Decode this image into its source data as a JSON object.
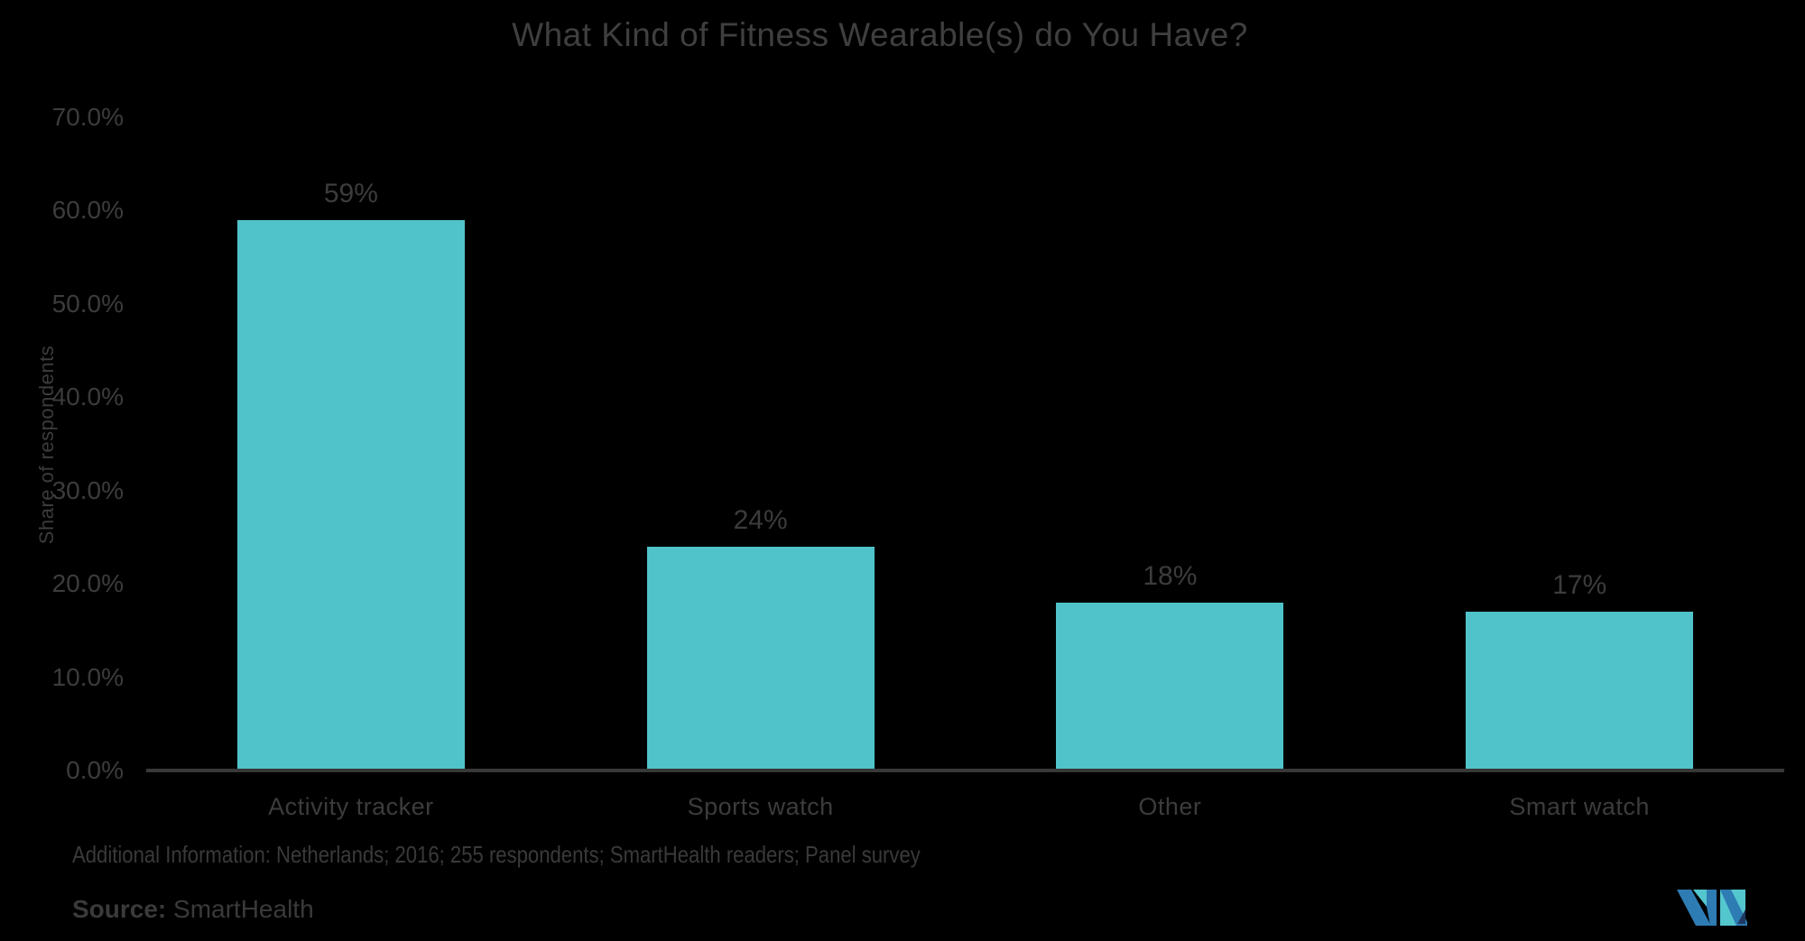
{
  "title": "What Kind of Fitness Wearable(s) do You Have?",
  "chart_data": {
    "type": "bar",
    "title": "What Kind of Fitness Wearable(s) do You Have?",
    "categories": [
      "Activity tracker",
      "Sports watch",
      "Other",
      "Smart watch"
    ],
    "values": [
      59,
      24,
      18,
      17
    ],
    "value_labels": [
      "59%",
      "24%",
      "18%",
      "17%"
    ],
    "xlabel": "",
    "ylabel": "Share of respondents",
    "ylim": [
      0,
      70
    ],
    "ytick_values": [
      0,
      10,
      20,
      30,
      40,
      50,
      60,
      70
    ],
    "ytick_labels": [
      "0.0%",
      "10.0%",
      "20.0%",
      "30.0%",
      "40.0%",
      "50.0%",
      "60.0%",
      "70.0%"
    ],
    "grid": false,
    "legend": null,
    "bar_color": "#4FC3C9"
  },
  "footer": {
    "additional_info": "Additional Information: Netherlands; 2016; 255 respondents; SmartHealth readers; Panel survey",
    "source_label": "Source:",
    "source_value": " SmartHealth"
  },
  "colors": {
    "background": "#000000",
    "bar": "#4FC3C9",
    "text": "#3C3C3C",
    "axis_line": "#383838",
    "logo_blue": "#2E7CB4",
    "logo_teal": "#54C6CE",
    "logo_navy": "#1E3A63"
  },
  "logo_name": "mordor-intelligence-logo"
}
